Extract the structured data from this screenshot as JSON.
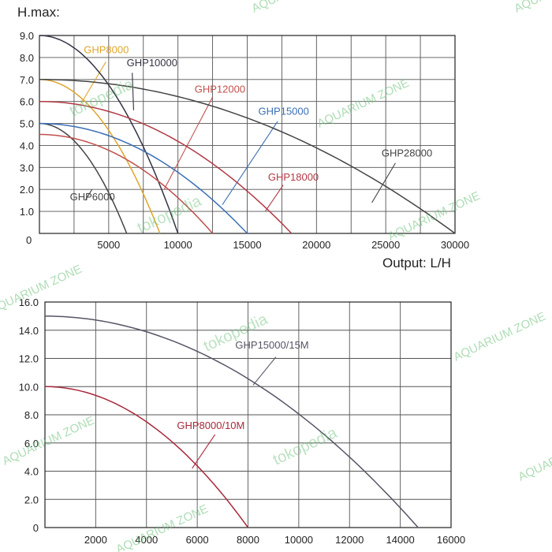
{
  "watermarks": [
    "AQUARIUM ZONE",
    "tokopedia"
  ],
  "chart_data": [
    {
      "type": "line",
      "title": "H.max:",
      "xlabel": "Output: L/H",
      "ylabel": "",
      "xlim": [
        0,
        30000
      ],
      "ylim": [
        0,
        9
      ],
      "grid": true,
      "x_ticks": [
        0,
        5000,
        10000,
        15000,
        20000,
        25000,
        30000
      ],
      "x_tick_labels": [
        "0",
        "5000",
        "10000",
        "15000",
        "20000",
        "25000",
        "30000"
      ],
      "y_ticks": [
        1,
        2,
        3,
        4,
        5,
        6,
        7,
        8,
        9
      ],
      "y_tick_labels": [
        "1.0",
        "2.0",
        "3.0",
        "4.0",
        "5.0",
        "6.0",
        "7.0",
        "8.0",
        "9.0"
      ],
      "series": [
        {
          "name": "GHP6000",
          "color": "#444444",
          "hmax": 5.0,
          "qmax": 6300,
          "label_at": [
            2200,
            1.5
          ],
          "leader": [
            3300,
            1.5,
            3800,
            2.0
          ]
        },
        {
          "name": "GHP8000",
          "color": "#e0a52c",
          "hmax": 7.0,
          "qmax": 8700,
          "label_at": [
            3200,
            8.2
          ],
          "leader": [
            4800,
            7.8,
            3000,
            5.9
          ]
        },
        {
          "name": "GHP10000",
          "color": "#333344",
          "hmax": 9.0,
          "qmax": 10000,
          "label_at": [
            6300,
            7.6
          ],
          "leader": [
            6700,
            7.3,
            6800,
            5.6
          ]
        },
        {
          "name": "GHP12000",
          "color": "#c0504d",
          "hmax": 4.5,
          "qmax": 12500,
          "label_at": [
            11200,
            6.4
          ],
          "leader": [
            12500,
            6.2,
            9000,
            2.0
          ]
        },
        {
          "name": "GHP15000",
          "color": "#3a6fb5",
          "hmax": 5.0,
          "qmax": 15000,
          "label_at": [
            15800,
            5.4
          ],
          "leader": [
            17200,
            5.1,
            13200,
            1.3
          ]
        },
        {
          "name": "GHP18000",
          "color": "#b03a44",
          "hmax": 6.0,
          "qmax": 18200,
          "label_at": [
            16500,
            2.4
          ],
          "leader": [
            17600,
            2.2,
            16300,
            1.0
          ]
        },
        {
          "name": "GHP28000",
          "color": "#444444",
          "hmax": 7.0,
          "qmax": 30000,
          "label_at": [
            24700,
            3.5
          ],
          "leader": [
            25700,
            3.2,
            24000,
            1.4
          ]
        }
      ]
    },
    {
      "type": "line",
      "title": "",
      "xlabel": "",
      "ylabel": "",
      "xlim": [
        0,
        16000
      ],
      "ylim": [
        0,
        16
      ],
      "grid": true,
      "x_ticks": [
        2000,
        4000,
        6000,
        8000,
        10000,
        12000,
        14000,
        16000
      ],
      "x_tick_labels": [
        "2000",
        "4000",
        "6000",
        "8000",
        "10000",
        "12000",
        "14000",
        "16000"
      ],
      "y_ticks": [
        0,
        2,
        4,
        6,
        8,
        10,
        12,
        14,
        16
      ],
      "y_tick_labels": [
        "0",
        "2.0",
        "4.0",
        "6.0",
        "8.0",
        "10.0",
        "12.0",
        "14.0",
        "16.0"
      ],
      "series": [
        {
          "name": "GHP15000/15M",
          "color": "#555566",
          "hmax": 15.0,
          "qmax": 14700,
          "label_at": [
            7500,
            12.7
          ],
          "leader": [
            9100,
            12.1,
            8200,
            10.1
          ]
        },
        {
          "name": "GHP8000/10M",
          "color": "#a8283a",
          "hmax": 10.0,
          "qmax": 8000,
          "label_at": [
            5200,
            7.0
          ],
          "leader": [
            6700,
            6.6,
            5800,
            4.2
          ]
        }
      ]
    }
  ]
}
